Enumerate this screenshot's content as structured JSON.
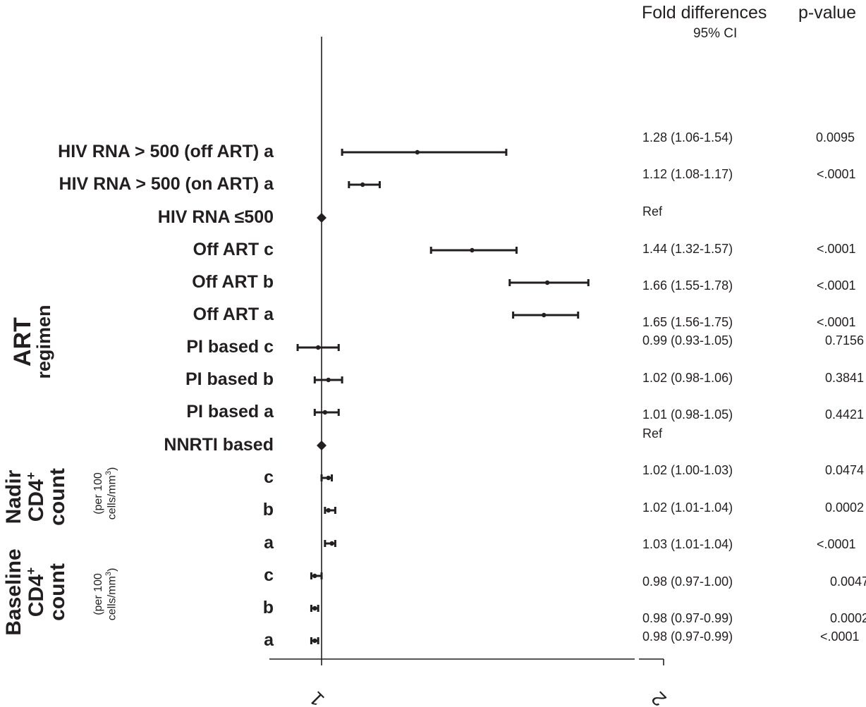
{
  "table_headers": {
    "fold": "Fold differences",
    "ci": "95% CI",
    "pvalue": "p-value"
  },
  "group_labels": {
    "art": [
      "ART",
      "regimen"
    ],
    "nadir": [
      "Nadir",
      "CD4",
      "+",
      "count"
    ],
    "nadir_unit": [
      "(per 100",
      "cells/mm",
      "3",
      ")"
    ],
    "baseline": [
      "Baseline",
      "CD4",
      "+",
      "count"
    ],
    "baseline_unit": [
      "(per 100",
      "cells/mm",
      "3",
      ")"
    ]
  },
  "chart_data": {
    "type": "forest",
    "xlim": [
      1,
      2
    ],
    "x_ticks": [
      "1",
      "2"
    ],
    "reference_line": 1,
    "rows": [
      {
        "label": "HIV RNA > 500 (off ART) a",
        "est": 1.28,
        "lo": 1.06,
        "hi": 1.54,
        "ci_text": "1.28 (1.06-1.54)",
        "p": "0.0095",
        "ref": false
      },
      {
        "label": "HIV RNA > 500 (on ART) a",
        "est": 1.12,
        "lo": 1.08,
        "hi": 1.17,
        "ci_text": "1.12 (1.08-1.17)",
        "p": "<.0001",
        "ref": false
      },
      {
        "label": "HIV RNA ≤500",
        "est": 1.0,
        "lo": null,
        "hi": null,
        "ci_text": "Ref",
        "p": "",
        "ref": true
      },
      {
        "label": "Off ART c",
        "est": 1.44,
        "lo": 1.32,
        "hi": 1.57,
        "ci_text": "1.44 (1.32-1.57)",
        "p": "<.0001",
        "ref": false
      },
      {
        "label": "Off ART b",
        "est": 1.66,
        "lo": 1.55,
        "hi": 1.78,
        "ci_text": "1.66 (1.55-1.78)",
        "p": "<.0001",
        "ref": false
      },
      {
        "label": "Off ART a",
        "est": 1.65,
        "lo": 1.56,
        "hi": 1.75,
        "ci_text": "1.65 (1.56-1.75)",
        "p": "<.0001",
        "ref": false
      },
      {
        "label": "PI based c",
        "est": 0.99,
        "lo": 0.93,
        "hi": 1.05,
        "ci_text": "0.99 (0.93-1.05)",
        "p": "0.7156",
        "ref": false
      },
      {
        "label": "PI based b",
        "est": 1.02,
        "lo": 0.98,
        "hi": 1.06,
        "ci_text": "1.02 (0.98-1.06)",
        "p": "0.3841",
        "ref": false
      },
      {
        "label": "PI based a",
        "est": 1.01,
        "lo": 0.98,
        "hi": 1.05,
        "ci_text": "1.01 (0.98-1.05)",
        "p": "0.4421",
        "ref": false
      },
      {
        "label": "NNRTI based",
        "est": 1.0,
        "lo": null,
        "hi": null,
        "ci_text": "Ref",
        "p": "",
        "ref": true
      },
      {
        "label": "c",
        "est": 1.02,
        "lo": 1.0,
        "hi": 1.03,
        "ci_text": "1.02 (1.00-1.03)",
        "p": "0.0474",
        "ref": false
      },
      {
        "label": "b",
        "est": 1.02,
        "lo": 1.01,
        "hi": 1.04,
        "ci_text": "1.02 (1.01-1.04)",
        "p": "0.0002",
        "ref": false
      },
      {
        "label": "a",
        "est": 1.03,
        "lo": 1.01,
        "hi": 1.04,
        "ci_text": "1.03 (1.01-1.04)",
        "p": "<.0001",
        "ref": false
      },
      {
        "label": "c",
        "est": 0.98,
        "lo": 0.97,
        "hi": 1.0,
        "ci_text": "0.98 (0.97-1.00)",
        "p": "0.0047",
        "ref": false
      },
      {
        "label": "b",
        "est": 0.98,
        "lo": 0.97,
        "hi": 0.99,
        "ci_text": "0.98 (0.97-0.99)",
        "p": "0.0002",
        "ref": false
      },
      {
        "label": "a",
        "est": 0.98,
        "lo": 0.97,
        "hi": 0.99,
        "ci_text": "0.98 (0.97-0.99)",
        "p": "<.0001",
        "ref": false
      }
    ]
  }
}
